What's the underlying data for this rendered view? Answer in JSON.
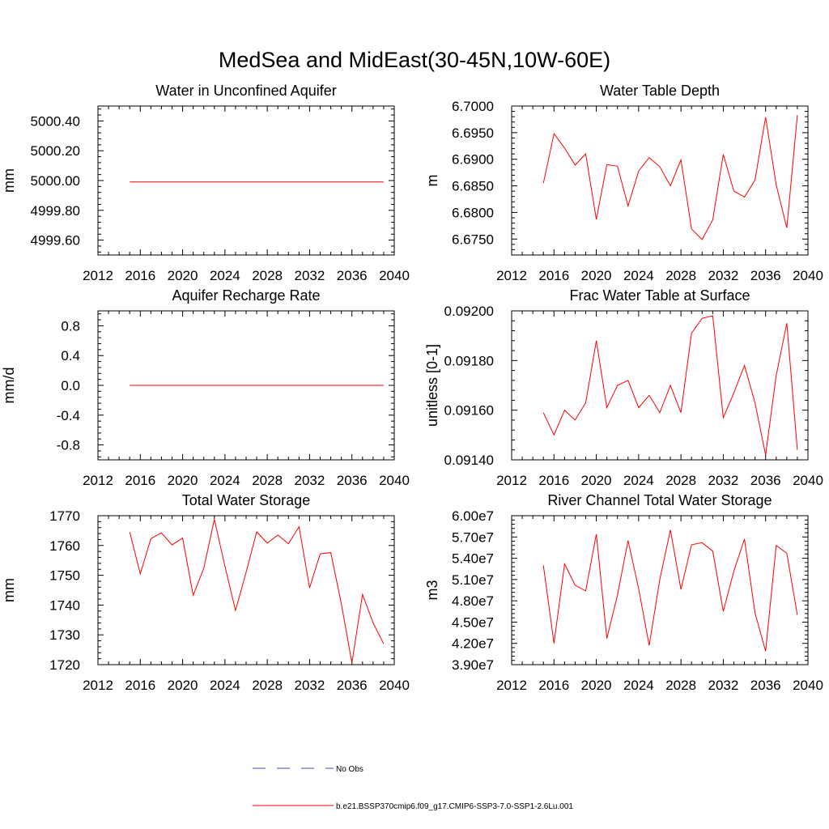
{
  "figure": {
    "title": "MedSea and MidEast(30-45N,10W-60E)"
  },
  "colors": {
    "series": "#ff0000",
    "obs": "#3a4fa8",
    "axis": "#000000"
  },
  "chart_data": [
    {
      "type": "line",
      "title": "Water in Unconfined Aquifer",
      "ylabel": "mm",
      "xlim": [
        2012,
        2040
      ],
      "ylim": [
        4999.5,
        5000.5
      ],
      "xticks": [
        2012,
        2016,
        2020,
        2024,
        2028,
        2032,
        2036,
        2040
      ],
      "yticks": [
        4999.6,
        4999.8,
        5000.0,
        5000.2,
        5000.4
      ],
      "ytick_labels": [
        "4999.60",
        "4999.80",
        "5000.00",
        "5000.20",
        "5000.40"
      ],
      "series": [
        {
          "name": "b.e21.BSSP370cmip6.f09_g17.CMIP6-SSP3-7.0-SSP1-2.6Lu.001",
          "x": [
            2015,
            2016,
            2017,
            2018,
            2019,
            2020,
            2021,
            2022,
            2023,
            2024,
            2025,
            2026,
            2027,
            2028,
            2029,
            2030,
            2031,
            2032,
            2033,
            2034,
            2035,
            2036,
            2037,
            2038,
            2039
          ],
          "y": [
            4999.99,
            4999.99,
            4999.99,
            4999.99,
            4999.99,
            4999.99,
            4999.99,
            4999.99,
            4999.99,
            4999.99,
            4999.99,
            4999.99,
            4999.99,
            4999.99,
            4999.99,
            4999.99,
            4999.99,
            4999.99,
            4999.99,
            4999.99,
            4999.99,
            4999.99,
            4999.99,
            4999.99,
            4999.99
          ]
        }
      ]
    },
    {
      "type": "line",
      "title": "Water Table Depth",
      "ylabel": "m",
      "xlim": [
        2012,
        2040
      ],
      "ylim": [
        6.672,
        6.7
      ],
      "xticks": [
        2012,
        2016,
        2020,
        2024,
        2028,
        2032,
        2036,
        2040
      ],
      "yticks": [
        6.675,
        6.68,
        6.685,
        6.69,
        6.695,
        6.7
      ],
      "ytick_labels": [
        "6.6750",
        "6.6800",
        "6.6850",
        "6.6900",
        "6.6950",
        "6.7000"
      ],
      "series": [
        {
          "name": "b.e21.BSSP370cmip6.f09_g17.CMIP6-SSP3-7.0-SSP1-2.6Lu.001",
          "x": [
            2015,
            2016,
            2017,
            2018,
            2019,
            2020,
            2021,
            2022,
            2023,
            2024,
            2025,
            2026,
            2027,
            2028,
            2029,
            2030,
            2031,
            2032,
            2033,
            2034,
            2035,
            2036,
            2037,
            2038,
            2039
          ],
          "y": [
            6.6855,
            6.6948,
            6.6921,
            6.6889,
            6.691,
            6.6787,
            6.689,
            6.6887,
            6.6812,
            6.6878,
            6.6903,
            6.6886,
            6.685,
            6.6899,
            6.6769,
            6.6749,
            6.6786,
            6.6909,
            6.684,
            6.6829,
            6.6861,
            6.6979,
            6.6852,
            6.6771,
            6.6983
          ]
        }
      ]
    },
    {
      "type": "line",
      "title": "Aquifer Recharge Rate",
      "ylabel": "mm/d",
      "xlim": [
        2012,
        2040
      ],
      "ylim": [
        -1.0,
        1.0
      ],
      "xticks": [
        2012,
        2016,
        2020,
        2024,
        2028,
        2032,
        2036,
        2040
      ],
      "yticks": [
        -0.8,
        -0.4,
        0.0,
        0.4,
        0.8
      ],
      "ytick_labels": [
        "-0.8",
        "-0.4",
        "0.0",
        "0.4",
        "0.8"
      ],
      "series": [
        {
          "name": "b.e21.BSSP370cmip6.f09_g17.CMIP6-SSP3-7.0-SSP1-2.6Lu.001",
          "x": [
            2015,
            2016,
            2017,
            2018,
            2019,
            2020,
            2021,
            2022,
            2023,
            2024,
            2025,
            2026,
            2027,
            2028,
            2029,
            2030,
            2031,
            2032,
            2033,
            2034,
            2035,
            2036,
            2037,
            2038,
            2039
          ],
          "y": [
            0,
            0,
            0,
            0,
            0,
            0,
            0,
            0,
            0,
            0,
            0,
            0,
            0,
            0,
            0,
            0,
            0,
            0,
            0,
            0,
            0,
            0,
            0,
            0,
            0
          ]
        }
      ]
    },
    {
      "type": "line",
      "title": "Frac Water Table at Surface",
      "ylabel": "unitless [0-1]",
      "xlim": [
        2012,
        2040
      ],
      "ylim": [
        0.0914,
        0.092
      ],
      "xticks": [
        2012,
        2016,
        2020,
        2024,
        2028,
        2032,
        2036,
        2040
      ],
      "yticks": [
        0.0914,
        0.0916,
        0.0918,
        0.092
      ],
      "ytick_labels": [
        "0.09140",
        "0.09160",
        "0.09180",
        "0.09200"
      ],
      "series": [
        {
          "name": "b.e21.BSSP370cmip6.f09_g17.CMIP6-SSP3-7.0-SSP1-2.6Lu.001",
          "x": [
            2015,
            2016,
            2017,
            2018,
            2019,
            2020,
            2021,
            2022,
            2023,
            2024,
            2025,
            2026,
            2027,
            2028,
            2029,
            2030,
            2031,
            2032,
            2033,
            2034,
            2035,
            2036,
            2037,
            2038,
            2039
          ],
          "y": [
            0.09159,
            0.0915,
            0.0916,
            0.09156,
            0.09163,
            0.09188,
            0.09161,
            0.0917,
            0.09172,
            0.09161,
            0.09166,
            0.09159,
            0.0917,
            0.09159,
            0.09191,
            0.09197,
            0.09198,
            0.09157,
            0.09167,
            0.09178,
            0.09163,
            0.09142,
            0.09174,
            0.09195,
            0.09144
          ]
        }
      ]
    },
    {
      "type": "line",
      "title": "Total Water Storage",
      "ylabel": "mm",
      "xlim": [
        2012,
        2040
      ],
      "ylim": [
        1720,
        1770
      ],
      "xticks": [
        2012,
        2016,
        2020,
        2024,
        2028,
        2032,
        2036,
        2040
      ],
      "yticks": [
        1720,
        1730,
        1740,
        1750,
        1760,
        1770
      ],
      "ytick_labels": [
        "1720",
        "1730",
        "1740",
        "1750",
        "1760",
        "1770"
      ],
      "series": [
        {
          "name": "b.e21.BSSP370cmip6.f09_g17.CMIP6-SSP3-7.0-SSP1-2.6Lu.001",
          "x": [
            2015,
            2016,
            2017,
            2018,
            2019,
            2020,
            2021,
            2022,
            2023,
            2024,
            2025,
            2026,
            2027,
            2028,
            2029,
            2030,
            2031,
            2032,
            2033,
            2034,
            2035,
            2036,
            2037,
            2038,
            2039
          ],
          "y": [
            1764.5,
            1750.5,
            1762.3,
            1764.2,
            1760.2,
            1762.5,
            1743.3,
            1752.3,
            1768.8,
            1753.0,
            1738.2,
            1751.0,
            1764.6,
            1760.8,
            1763.5,
            1760.6,
            1766.3,
            1745.8,
            1757.2,
            1757.6,
            1740.5,
            1720.6,
            1743.6,
            1734.0,
            1727.0
          ]
        }
      ]
    },
    {
      "type": "line",
      "title": "River Channel Total Water Storage",
      "ylabel": "m3",
      "xlim": [
        2012,
        2040
      ],
      "ylim": [
        39000000,
        60000000
      ],
      "xticks": [
        2012,
        2016,
        2020,
        2024,
        2028,
        2032,
        2036,
        2040
      ],
      "yticks": [
        39000000,
        42000000,
        45000000,
        48000000,
        51000000,
        54000000,
        57000000,
        60000000
      ],
      "ytick_labels": [
        "3.90e7",
        "4.20e7",
        "4.50e7",
        "4.80e7",
        "5.10e7",
        "5.40e7",
        "5.70e7",
        "6.00e7"
      ],
      "series": [
        {
          "name": "b.e21.BSSP370cmip6.f09_g17.CMIP6-SSP3-7.0-SSP1-2.6Lu.001",
          "x": [
            2015,
            2016,
            2017,
            2018,
            2019,
            2020,
            2021,
            2022,
            2023,
            2024,
            2025,
            2026,
            2027,
            2028,
            2029,
            2030,
            2031,
            2032,
            2033,
            2034,
            2035,
            2036,
            2037,
            2038,
            2039
          ],
          "y": [
            53000000,
            42000000,
            53200000,
            50200000,
            49400000,
            57400000,
            42700000,
            48800000,
            56500000,
            49700000,
            41700000,
            51000000,
            58000000,
            49600000,
            55900000,
            56200000,
            55000000,
            46500000,
            52200000,
            56700000,
            46300000,
            40900000,
            55800000,
            54700000,
            46000000
          ]
        }
      ]
    }
  ],
  "legend": {
    "items": [
      {
        "label": "No Obs",
        "style": "dashed"
      },
      {
        "label": "b.e21.BSSP370cmip6.f09_g17.CMIP6-SSP3-7.0-SSP1-2.6Lu.001",
        "style": "solid"
      }
    ]
  }
}
